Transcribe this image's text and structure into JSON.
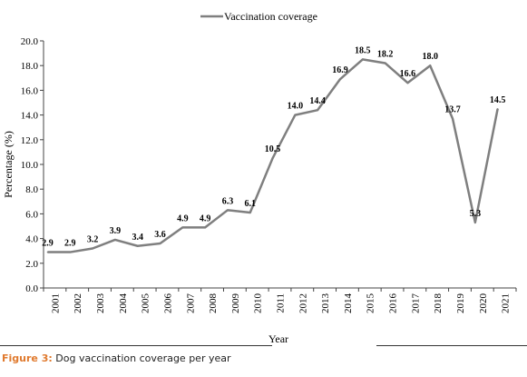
{
  "chart_data": {
    "type": "line",
    "title": "",
    "xlabel": "Year",
    "ylabel": "Percentage (%)",
    "ylim": [
      0,
      20
    ],
    "y_ticks": [
      "0.0",
      "2.0",
      "4.0",
      "6.0",
      "8.0",
      "10.0",
      "12.0",
      "14.0",
      "16.0",
      "18.0",
      "20.0"
    ],
    "categories": [
      "2001",
      "2002",
      "2003",
      "2004",
      "2005",
      "2006",
      "2007",
      "2008",
      "2009",
      "2010",
      "2011",
      "2012",
      "2013",
      "2014",
      "2015",
      "2016",
      "2017",
      "2018",
      "2019",
      "2020",
      "2021"
    ],
    "series": [
      {
        "name": "Vaccination coverage",
        "color": "#7f7f7f",
        "values": [
          2.9,
          2.9,
          3.2,
          3.9,
          3.4,
          3.6,
          4.9,
          4.9,
          6.3,
          6.1,
          10.5,
          14.0,
          14.4,
          16.9,
          18.5,
          18.2,
          16.6,
          18.0,
          13.7,
          5.3,
          14.5
        ],
        "labels": [
          "2.9",
          "2.9",
          "3.2",
          "3.9",
          "3.4",
          "3.6",
          "4.9",
          "4.9",
          "6.3",
          "6.1",
          "10.5",
          "14.0",
          "14.4",
          "16.9",
          "18.5",
          "18.2",
          "16.6",
          "18.0",
          "13.7",
          "5.3",
          "14.5"
        ]
      }
    ],
    "legend_position": "top-center",
    "grid": false
  },
  "caption": {
    "figure_label": "Figure 3:",
    "text": " Dog vaccination coverage per year"
  }
}
